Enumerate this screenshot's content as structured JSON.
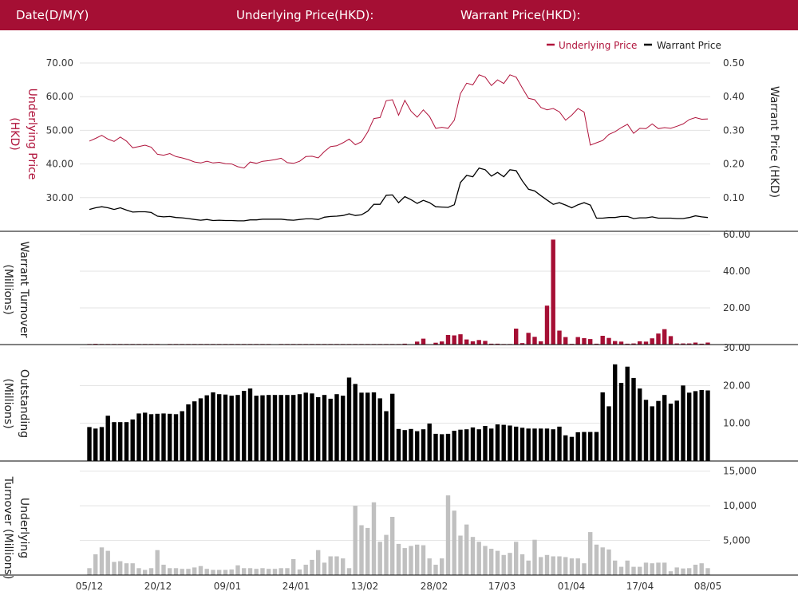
{
  "header": {
    "date_label": "Date(D/M/Y)",
    "underlying_label": "Underlying Price(HKD):",
    "warrant_label": "Warrant Price(HKD):"
  },
  "colors": {
    "brand": "#a50f34",
    "underlying_line": "#b0143c",
    "warrant_line": "#000000",
    "turnover_bars": "#a50f34",
    "outstanding_bars": "#000000",
    "underlying_turnover_bars": "#c0c0c0"
  },
  "x_ticks": [
    "05/12",
    "20/12",
    "09/01",
    "24/01",
    "13/02",
    "28/02",
    "17/03",
    "01/04",
    "17/04",
    "08/05"
  ],
  "chart_data": [
    {
      "type": "line",
      "legend": {
        "position": "top-right",
        "entries": [
          "Underlying Price",
          "Warrant Price"
        ]
      },
      "left_axis_label": "Underlying Price\n(HKD)",
      "right_axis_label": "Warrant  Price (HKD)",
      "left_ticks": [
        "70.00",
        "60.00",
        "50.00",
        "40.00",
        "30.00"
      ],
      "right_ticks": [
        "0.50",
        "0.40",
        "0.30",
        "0.20",
        "0.10"
      ],
      "left_range": [
        20,
        70
      ],
      "right_range": [
        0.0,
        0.5
      ],
      "series": [
        {
          "name": "Underlying Price",
          "axis": "left",
          "values": [
            46.8,
            47.6,
            48.5,
            47.4,
            46.7,
            48.0,
            46.8,
            44.8,
            45.2,
            45.6,
            45.0,
            42.9,
            42.6,
            43.1,
            42.2,
            41.8,
            41.3,
            40.6,
            40.3,
            40.8,
            40.3,
            40.5,
            40.1,
            40.0,
            39.2,
            38.8,
            40.6,
            40.2,
            40.8,
            41.0,
            41.3,
            41.7,
            40.4,
            40.2,
            40.8,
            42.2,
            42.3,
            41.8,
            43.7,
            45.2,
            45.4,
            46.3,
            47.4,
            45.7,
            46.6,
            49.5,
            53.5,
            53.8,
            58.8,
            59.1,
            54.5,
            58.9,
            55.7,
            53.9,
            56.1,
            54.1,
            50.6,
            50.9,
            50.6,
            53.0,
            60.9,
            64.0,
            63.5,
            66.5,
            65.8,
            63.3,
            65.0,
            63.9,
            66.5,
            65.8,
            62.6,
            59.5,
            59.1,
            56.8,
            56.1,
            56.5,
            55.5,
            53.0,
            54.5,
            56.5,
            55.4,
            45.6,
            46.3,
            47.0,
            48.8,
            49.6,
            50.8,
            51.8,
            49.1,
            50.6,
            50.5,
            51.9,
            50.5,
            50.8,
            50.6,
            51.2,
            51.9,
            53.2,
            53.8,
            53.3,
            53.4
          ]
        },
        {
          "name": "Warrant Price",
          "axis": "right",
          "values": [
            0.065,
            0.07,
            0.073,
            0.07,
            0.065,
            0.07,
            0.063,
            0.057,
            0.058,
            0.058,
            0.056,
            0.045,
            0.043,
            0.044,
            0.041,
            0.04,
            0.038,
            0.035,
            0.033,
            0.035,
            0.032,
            0.033,
            0.032,
            0.032,
            0.031,
            0.031,
            0.034,
            0.034,
            0.036,
            0.036,
            0.036,
            0.036,
            0.034,
            0.033,
            0.035,
            0.037,
            0.037,
            0.035,
            0.042,
            0.044,
            0.045,
            0.047,
            0.052,
            0.047,
            0.049,
            0.06,
            0.08,
            0.08,
            0.107,
            0.108,
            0.085,
            0.103,
            0.094,
            0.083,
            0.092,
            0.085,
            0.073,
            0.072,
            0.071,
            0.079,
            0.145,
            0.166,
            0.162,
            0.188,
            0.183,
            0.164,
            0.175,
            0.162,
            0.183,
            0.18,
            0.15,
            0.125,
            0.12,
            0.106,
            0.093,
            0.08,
            0.085,
            0.078,
            0.07,
            0.079,
            0.085,
            0.078,
            0.039,
            0.039,
            0.041,
            0.041,
            0.044,
            0.044,
            0.038,
            0.04,
            0.04,
            0.043,
            0.039,
            0.039,
            0.039,
            0.038,
            0.038,
            0.041,
            0.046,
            0.043,
            0.041
          ]
        }
      ]
    },
    {
      "type": "bar",
      "axis_label": "Warrant  Turnover\n(Millions)",
      "ticks": [
        "60.00",
        "40.00",
        "20.00"
      ],
      "range": [
        0,
        60
      ],
      "values": [
        0.3,
        0.4,
        0.3,
        0.3,
        0.3,
        0.3,
        0.3,
        0.3,
        0.3,
        0.3,
        0.3,
        0.3,
        0,
        0.3,
        0.3,
        0.3,
        0.3,
        0.3,
        0.3,
        0.3,
        0.3,
        0.3,
        0.3,
        0.3,
        0.3,
        0.3,
        0.3,
        0.3,
        0.3,
        0.3,
        0,
        0.3,
        0.3,
        0.3,
        0.3,
        0.3,
        0.3,
        0.3,
        0.3,
        0.3,
        0.3,
        0.3,
        0.3,
        0.3,
        0.3,
        0.3,
        0.3,
        0.3,
        0.3,
        0.3,
        0.3,
        0.5,
        0,
        1.6,
        3.2,
        0,
        1.0,
        1.7,
        5.2,
        5.0,
        5.6,
        2.8,
        1.8,
        2.5,
        2.0,
        0.5,
        0.5,
        0.3,
        0.3,
        8.7,
        0.8,
        6.4,
        4.2,
        1.8,
        21.2,
        57.2,
        7.6,
        4.1,
        0.4,
        4.1,
        3.5,
        3.0,
        0.5,
        4.8,
        3.6,
        1.9,
        1.6,
        0.5,
        0.6,
        1.8,
        1.6,
        3.4,
        6.0,
        8.4,
        4.6,
        0.6,
        0.6,
        0.6,
        1.1,
        0.5,
        1.1
      ]
    },
    {
      "type": "bar",
      "axis_label": "Outstanding\n(Millions)",
      "ticks": [
        "30.00",
        "20.00",
        "10.00"
      ],
      "range": [
        0,
        30
      ],
      "values": [
        9,
        8.6,
        9,
        12,
        10.3,
        10.3,
        10.3,
        11,
        12.6,
        12.8,
        12.4,
        12.5,
        12.6,
        12.5,
        12.4,
        13.2,
        15,
        15.8,
        16.6,
        17.4,
        18.2,
        17.7,
        17.6,
        17.3,
        17.5,
        18.6,
        19.2,
        17.3,
        17.4,
        17.5,
        17.5,
        17.5,
        17.5,
        17.5,
        17.7,
        18.1,
        17.9,
        16.9,
        17.5,
        16.5,
        17.7,
        17.3,
        22.1,
        20.4,
        18.1,
        18.1,
        18.2,
        16.6,
        13.2,
        17.8,
        8.5,
        8.2,
        8.5,
        7.9,
        8.4,
        9.9,
        7.2,
        7.1,
        7.2,
        8.0,
        8.3,
        8.4,
        8.9,
        8.4,
        9.3,
        8.6,
        9.7,
        9.6,
        9.4,
        9.1,
        8.8,
        8.6,
        8.6,
        8.6,
        8.6,
        8.4,
        9.1,
        6.8,
        6.4,
        7.6,
        7.7,
        7.7,
        7.7,
        18.2,
        14.5,
        25.6,
        20.7,
        25.0,
        22.0,
        19.2,
        16.2,
        14.5,
        15.9,
        17.5,
        15.2,
        16.0,
        20.0,
        18.1,
        18.5,
        18.8,
        18.7
      ]
    },
    {
      "type": "bar",
      "axis_label": "Underlying\nTurnover (Millions)",
      "ticks": [
        "15,000",
        "10,000",
        "5,000"
      ],
      "range": [
        0,
        16000
      ],
      "values": [
        1000,
        3000,
        4000,
        3500,
        1900,
        2000,
        1700,
        1700,
        1000,
        750,
        1000,
        3600,
        1500,
        1000,
        1000,
        900,
        900,
        1100,
        1300,
        900,
        750,
        750,
        750,
        800,
        1400,
        1000,
        1000,
        900,
        1000,
        900,
        900,
        1000,
        1000,
        2300,
        800,
        1500,
        2200,
        3600,
        1800,
        2700,
        2700,
        2400,
        1000,
        10000,
        7200,
        6800,
        10500,
        4800,
        5800,
        8400,
        4500,
        3900,
        4200,
        4400,
        4300,
        2400,
        1500,
        2400,
        11500,
        9300,
        5700,
        7300,
        5500,
        4800,
        4200,
        3800,
        3500,
        2900,
        3200,
        4800,
        3000,
        2100,
        5100,
        2600,
        2900,
        2700,
        2700,
        2600,
        2400,
        2400,
        1700,
        6200,
        4400,
        4000,
        3700,
        2100,
        1200,
        2100,
        1200,
        1200,
        1800,
        1700,
        1800,
        1800,
        550,
        1100,
        950,
        1000,
        1500,
        1700,
        1000
      ]
    }
  ]
}
